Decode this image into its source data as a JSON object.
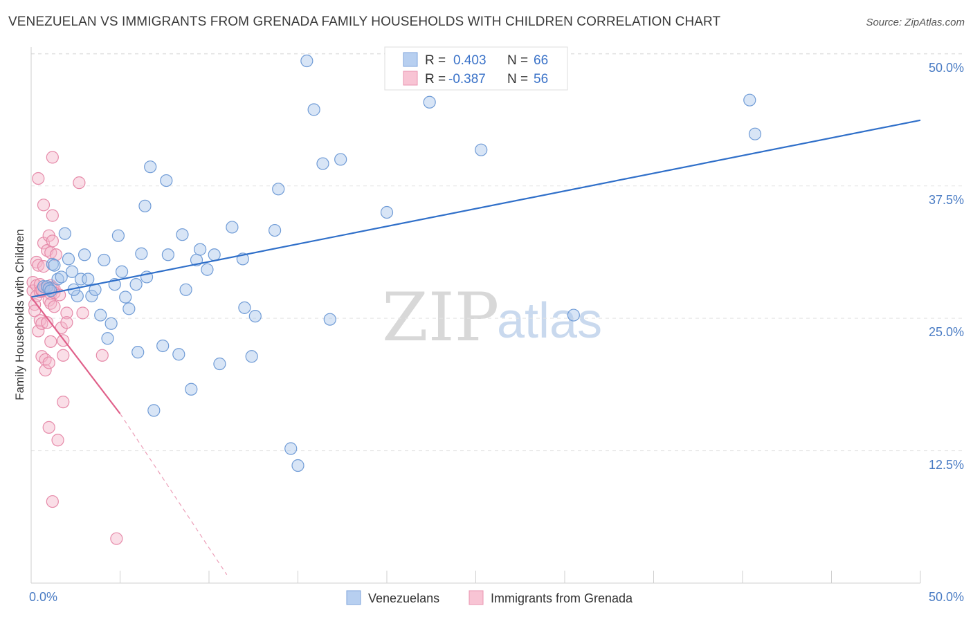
{
  "title": "VENEZUELAN VS IMMIGRANTS FROM GRENADA FAMILY HOUSEHOLDS WITH CHILDREN CORRELATION CHART",
  "source": "Source: ZipAtlas.com",
  "watermark": {
    "zip": "ZIP",
    "atlas": "atlas"
  },
  "colors": {
    "blue": "#a8c6ec",
    "blue_line": "#2f6fc9",
    "pink": "#f4b6c9",
    "pink_line": "#e0608a",
    "tick": "#4a7cc4"
  },
  "legend": {
    "r_label": "R =",
    "n_label": "N =",
    "series": [
      {
        "r": "0.403",
        "n": "66"
      },
      {
        "r": "-0.387",
        "n": "56"
      }
    ]
  },
  "chart_data": {
    "type": "scatter",
    "xlabel": "",
    "ylabel": "Family Households with Children",
    "xlim": [
      0,
      50
    ],
    "ylim": [
      0,
      51
    ],
    "x_tick_labels": [
      "0.0%",
      "50.0%"
    ],
    "y_ticks": [
      12.5,
      25.0,
      37.5,
      50.0
    ],
    "y_tick_labels": [
      "12.5%",
      "25.0%",
      "37.5%",
      "50.0%"
    ],
    "series": [
      {
        "name": "Venezuelans",
        "trend": {
          "x": [
            0.0,
            50.0
          ],
          "y": [
            27.0,
            43.7
          ]
        },
        "points": [
          [
            0.7,
            28.0
          ],
          [
            0.9,
            28.0
          ],
          [
            1.0,
            27.8
          ],
          [
            1.2,
            30.1
          ],
          [
            1.3,
            30.0
          ],
          [
            1.5,
            28.7
          ],
          [
            1.7,
            28.9
          ],
          [
            1.9,
            33.0
          ],
          [
            2.1,
            30.6
          ],
          [
            2.3,
            29.4
          ],
          [
            2.6,
            27.1
          ],
          [
            2.8,
            28.7
          ],
          [
            3.0,
            31.0
          ],
          [
            3.2,
            28.7
          ],
          [
            3.4,
            27.1
          ],
          [
            3.6,
            27.7
          ],
          [
            3.9,
            25.3
          ],
          [
            4.1,
            30.5
          ],
          [
            4.3,
            23.1
          ],
          [
            4.5,
            24.5
          ],
          [
            4.7,
            28.2
          ],
          [
            4.9,
            32.8
          ],
          [
            5.1,
            29.4
          ],
          [
            5.3,
            27.0
          ],
          [
            5.5,
            25.9
          ],
          [
            5.9,
            28.2
          ],
          [
            6.0,
            21.8
          ],
          [
            6.2,
            31.1
          ],
          [
            6.4,
            35.6
          ],
          [
            6.5,
            28.9
          ],
          [
            6.7,
            39.3
          ],
          [
            6.9,
            16.3
          ],
          [
            7.4,
            22.4
          ],
          [
            7.6,
            38.0
          ],
          [
            7.7,
            31.0
          ],
          [
            8.3,
            21.6
          ],
          [
            8.5,
            32.9
          ],
          [
            8.7,
            27.7
          ],
          [
            9.0,
            18.3
          ],
          [
            9.3,
            30.5
          ],
          [
            9.5,
            31.5
          ],
          [
            9.9,
            29.6
          ],
          [
            10.3,
            31.0
          ],
          [
            10.6,
            20.7
          ],
          [
            11.3,
            33.6
          ],
          [
            11.9,
            30.6
          ],
          [
            12.0,
            26.0
          ],
          [
            12.4,
            21.4
          ],
          [
            12.6,
            25.2
          ],
          [
            13.7,
            33.3
          ],
          [
            13.9,
            37.2
          ],
          [
            14.6,
            12.7
          ],
          [
            15.0,
            11.1
          ],
          [
            15.5,
            49.3
          ],
          [
            15.9,
            44.7
          ],
          [
            16.4,
            39.6
          ],
          [
            16.8,
            24.9
          ],
          [
            17.4,
            40.0
          ],
          [
            20.0,
            35.0
          ],
          [
            22.4,
            45.4
          ],
          [
            25.3,
            40.9
          ],
          [
            30.5,
            25.3
          ],
          [
            40.4,
            45.6
          ],
          [
            40.7,
            42.4
          ],
          [
            1.1,
            27.6
          ],
          [
            2.4,
            27.7
          ]
        ]
      },
      {
        "name": "Immigrants from Grenada",
        "trend": {
          "x": [
            0.0,
            5.0
          ],
          "y": [
            27.0,
            16.0
          ],
          "dashed_to": {
            "x": 11.0,
            "y": 0.8
          }
        },
        "points": [
          [
            0.1,
            28.4
          ],
          [
            0.1,
            27.6
          ],
          [
            0.2,
            26.3
          ],
          [
            0.2,
            25.7
          ],
          [
            0.3,
            28.1
          ],
          [
            0.3,
            27.1
          ],
          [
            0.3,
            30.3
          ],
          [
            0.4,
            30.0
          ],
          [
            0.4,
            23.8
          ],
          [
            0.4,
            38.2
          ],
          [
            0.5,
            28.2
          ],
          [
            0.5,
            27.5
          ],
          [
            0.5,
            24.8
          ],
          [
            0.6,
            27.6
          ],
          [
            0.6,
            24.5
          ],
          [
            0.6,
            21.4
          ],
          [
            0.7,
            32.1
          ],
          [
            0.7,
            35.7
          ],
          [
            0.7,
            29.9
          ],
          [
            0.8,
            27.9
          ],
          [
            0.8,
            21.1
          ],
          [
            0.8,
            20.1
          ],
          [
            0.9,
            31.4
          ],
          [
            0.9,
            27.8
          ],
          [
            0.9,
            24.6
          ],
          [
            1.0,
            20.8
          ],
          [
            1.0,
            32.8
          ],
          [
            1.0,
            26.7
          ],
          [
            1.0,
            14.7
          ],
          [
            1.1,
            31.2
          ],
          [
            1.1,
            28.1
          ],
          [
            1.1,
            27.3
          ],
          [
            1.1,
            26.4
          ],
          [
            1.1,
            22.8
          ],
          [
            1.2,
            34.7
          ],
          [
            1.2,
            32.3
          ],
          [
            1.2,
            27.9
          ],
          [
            1.2,
            40.2
          ],
          [
            1.2,
            7.7
          ],
          [
            1.3,
            27.8
          ],
          [
            1.3,
            27.4
          ],
          [
            1.3,
            26.1
          ],
          [
            1.4,
            31.0
          ],
          [
            1.5,
            13.5
          ],
          [
            1.6,
            27.2
          ],
          [
            1.7,
            24.1
          ],
          [
            1.8,
            21.5
          ],
          [
            1.8,
            17.1
          ],
          [
            1.8,
            22.9
          ],
          [
            2.0,
            25.5
          ],
          [
            2.0,
            24.6
          ],
          [
            2.7,
            37.8
          ],
          [
            2.9,
            25.5
          ],
          [
            4.0,
            21.5
          ],
          [
            4.8,
            4.2
          ],
          [
            0.6,
            27.7
          ]
        ]
      }
    ]
  },
  "bottom_legend": [
    "Venezuelans",
    "Immigrants from Grenada"
  ]
}
